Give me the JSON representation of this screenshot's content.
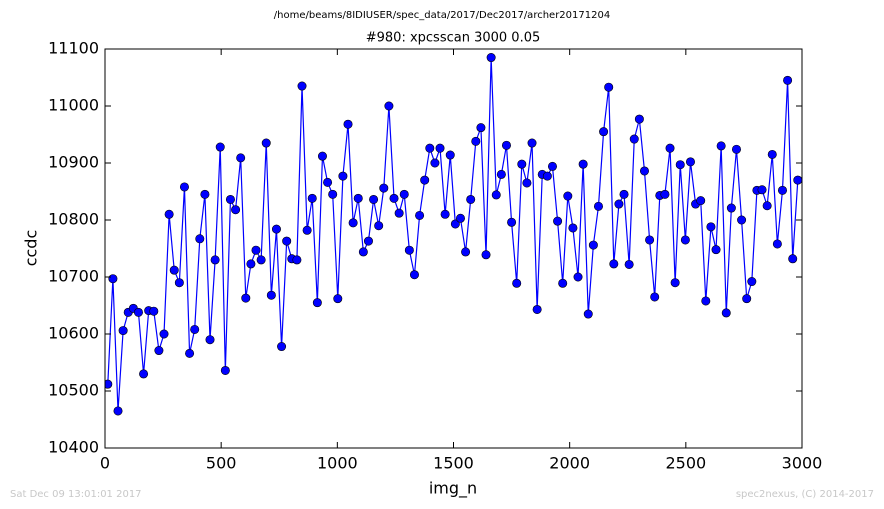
{
  "chart_data": {
    "type": "line",
    "suptitle": "/home/beams/8IDIUSER/spec_data/2017/Dec2017/archer20171204",
    "title": "#980: xpcsscan 3000 0.05",
    "x_label": "img_n",
    "y_label": "ccdc",
    "footer_left": "Sat Dec 09 13:01:01 2017",
    "footer_right": "spec2nexus, (C) 2014-2017",
    "color": "#0000ff",
    "marker": "circle",
    "x": [
      12,
      34,
      56,
      78,
      100,
      122,
      144,
      166,
      188,
      210,
      232,
      254,
      276,
      298,
      320,
      342,
      364,
      386,
      408,
      430,
      452,
      474,
      496,
      518,
      540,
      562,
      584,
      606,
      628,
      650,
      672,
      694,
      716,
      738,
      760,
      782,
      804,
      826,
      848,
      870,
      892,
      914,
      936,
      958,
      980,
      1002,
      1024,
      1046,
      1068,
      1090,
      1112,
      1134,
      1156,
      1178,
      1200,
      1222,
      1244,
      1266,
      1288,
      1310,
      1332,
      1354,
      1376,
      1398,
      1420,
      1442,
      1464,
      1486,
      1508,
      1530,
      1552,
      1574,
      1596,
      1618,
      1640,
      1662,
      1684,
      1706,
      1728,
      1750,
      1772,
      1794,
      1816,
      1838,
      1860,
      1882,
      1904,
      1926,
      1948,
      1970,
      1992,
      2014,
      2036,
      2058,
      2080,
      2102,
      2124,
      2146,
      2168,
      2190,
      2212,
      2234,
      2256,
      2278,
      2300,
      2322,
      2344,
      2366,
      2388,
      2410,
      2432,
      2454,
      2476,
      2498,
      2520,
      2542,
      2564,
      2586,
      2608,
      2630,
      2652,
      2674,
      2696,
      2718,
      2740,
      2762,
      2784,
      2806,
      2828,
      2850,
      2872,
      2894,
      2916,
      2938,
      2960,
      2982
    ],
    "values": [
      10512,
      10697,
      10465,
      10606,
      10638,
      10645,
      10638,
      10530,
      10641,
      10640,
      10571,
      10600,
      10810,
      10712,
      10690,
      10858,
      10566,
      10608,
      10767,
      10845,
      10590,
      10730,
      10928,
      10536,
      10836,
      10818,
      10909,
      10663,
      10723,
      10747,
      10730,
      10935,
      10668,
      10784,
      10578,
      10763,
      10732,
      10730,
      11035,
      10782,
      10838,
      10655,
      10912,
      10866,
      10845,
      10662,
      10877,
      10968,
      10795,
      10838,
      10744,
      10763,
      10836,
      10790,
      10856,
      11000,
      10838,
      10812,
      10845,
      10747,
      10704,
      10808,
      10870,
      10926,
      10900,
      10926,
      10810,
      10914,
      10793,
      10803,
      10744,
      10836,
      10938,
      10962,
      10739,
      11085,
      10844,
      10880,
      10931,
      10796,
      10689,
      10898,
      10865,
      10935,
      10643,
      10880,
      10877,
      10894,
      10798,
      10689,
      10842,
      10786,
      10700,
      10898,
      10635,
      10756,
      10824,
      10955,
      11033,
      10723,
      10828,
      10845,
      10722,
      10942,
      10977,
      10886,
      10765,
      10665,
      10843,
      10845,
      10926,
      10690,
      10897,
      10765,
      10902,
      10828,
      10834,
      10658,
      10788,
      10748,
      10930,
      10637,
      10821,
      10924,
      10800,
      10662,
      10692,
      10852,
      10853,
      10825,
      10915,
      10758,
      10852,
      11045,
      10732,
      10870
    ],
    "xlim": [
      0,
      3000
    ],
    "xticks": [
      0,
      500,
      1000,
      1500,
      2000,
      2500,
      3000
    ],
    "ylim": [
      10400,
      11100
    ],
    "yticks": [
      10400,
      10500,
      10600,
      10700,
      10800,
      10900,
      11000,
      11100
    ]
  }
}
